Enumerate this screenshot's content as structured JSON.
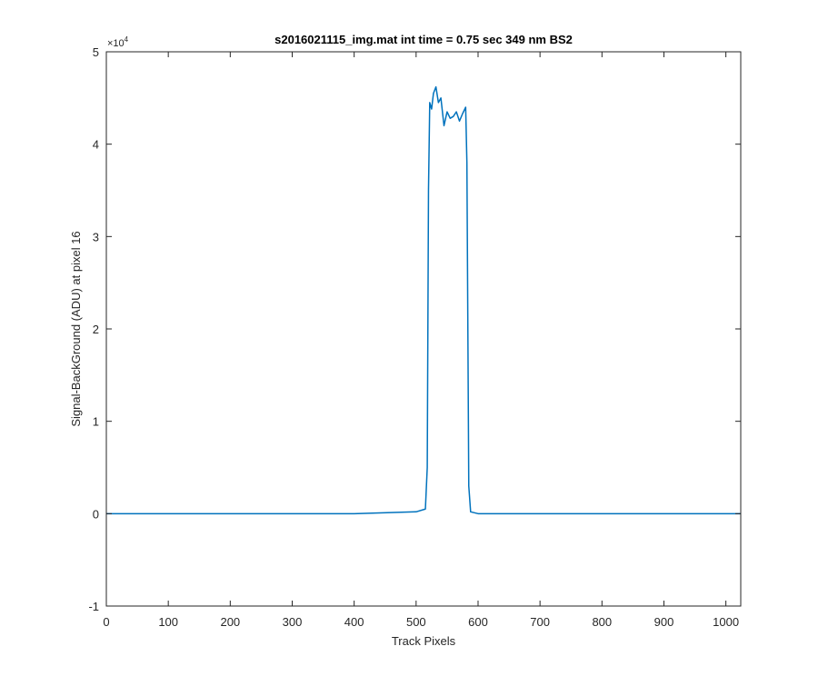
{
  "chart_data": {
    "type": "line",
    "title": "s2016021115_img.mat int time = 0.75 sec  349 nm BS2",
    "xlabel": "Track Pixels",
    "ylabel": "Signal-BackGround (ADU) at pixel 16",
    "y_exponent_base": "×10",
    "y_exponent_power": "4",
    "xlim": [
      0,
      1024
    ],
    "ylim": [
      -1,
      5
    ],
    "y_scale_factor": 10000,
    "xticks": [
      0,
      100,
      200,
      300,
      400,
      500,
      600,
      700,
      800,
      900,
      1000
    ],
    "xtick_labels": [
      "0",
      "100",
      "200",
      "300",
      "400",
      "500",
      "600",
      "700",
      "800",
      "900",
      "1000"
    ],
    "yticks": [
      -1,
      0,
      1,
      2,
      3,
      4,
      5
    ],
    "ytick_labels": [
      "-1",
      "0",
      "1",
      "2",
      "3",
      "4",
      "5"
    ],
    "grid": false,
    "box": true,
    "series": [
      {
        "color": "#0072BD",
        "x": [
          0,
          100,
          200,
          300,
          400,
          500,
          515,
          518,
          520,
          522,
          525,
          528,
          532,
          536,
          540,
          545,
          550,
          555,
          560,
          565,
          570,
          575,
          580,
          582,
          585,
          588,
          600,
          700,
          800,
          900,
          1024
        ],
        "y": [
          0,
          0,
          0,
          0,
          0,
          0.02,
          0.05,
          0.5,
          3.5,
          4.45,
          4.38,
          4.55,
          4.62,
          4.45,
          4.5,
          4.2,
          4.35,
          4.28,
          4.3,
          4.35,
          4.25,
          4.33,
          4.4,
          3.8,
          0.3,
          0.02,
          0,
          0,
          0,
          0,
          0
        ]
      }
    ]
  }
}
